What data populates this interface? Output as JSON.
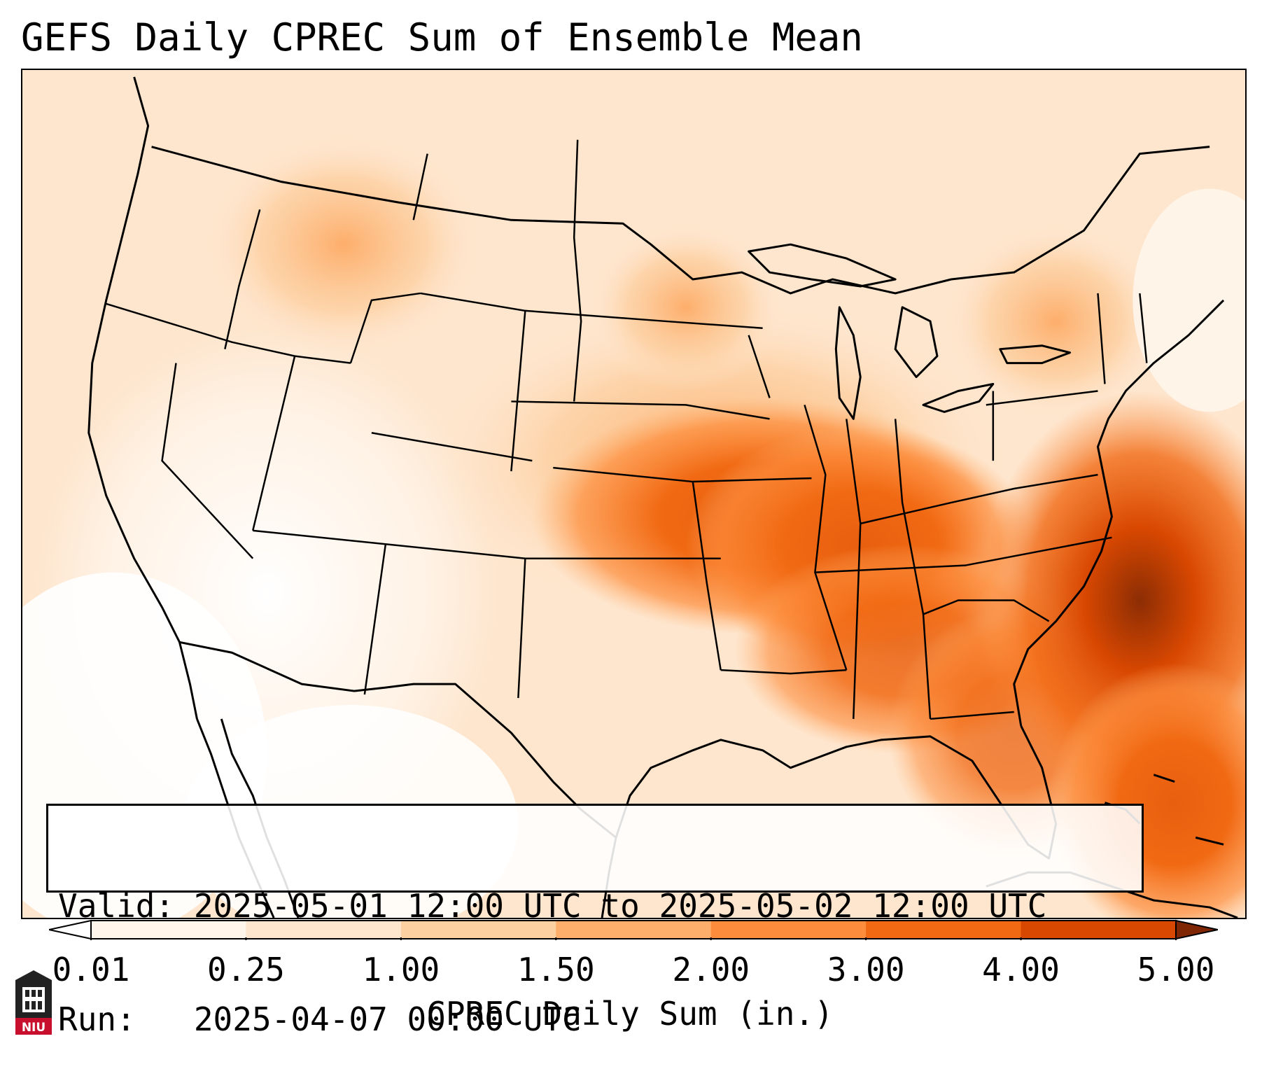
{
  "title": "GEFS Daily CPREC Sum of Ensemble Mean",
  "info": {
    "valid": "Valid: 2025-05-01 12:00 UTC to 2025-05-02 12:00 UTC",
    "run": "Run:   2025-04-07 00:00 UTC"
  },
  "colorbar": {
    "label": "CPREC Daily Sum (in.)",
    "ticks": [
      "0.01",
      "0.25",
      "1.00",
      "1.50",
      "2.00",
      "3.00",
      "4.00",
      "5.00"
    ],
    "colors": [
      "#fff5eb",
      "#fee6ce",
      "#fdd0a2",
      "#fdae6b",
      "#fd8d3c",
      "#f16913",
      "#d94801",
      "#8c2d04"
    ],
    "under_color": "#ffffff",
    "over_color": "#7f2704"
  },
  "logo": {
    "text": "NIU",
    "icon": "university-logo-icon"
  },
  "map": {
    "projection": "lambert-conformal",
    "region": "CONUS",
    "features": [
      "state-borders",
      "coastlines",
      "country-borders",
      "great-lakes"
    ]
  }
}
